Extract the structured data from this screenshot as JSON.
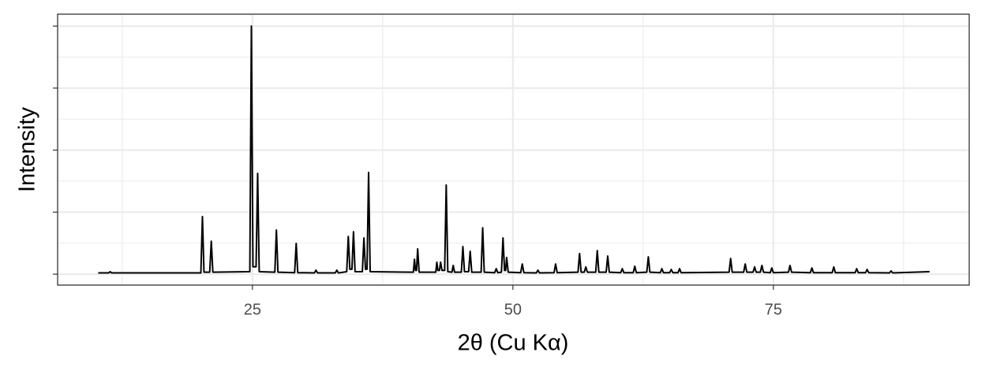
{
  "chart_data": {
    "type": "line",
    "xlabel": "2θ (Cu Kα)",
    "ylabel": "Intensity",
    "color": "#000000",
    "xlim": [
      6.3,
      93.8
    ],
    "xticks": [
      25,
      50,
      75
    ],
    "ylim": [
      -4.4,
      104.8
    ],
    "yticks": [
      0,
      25,
      50,
      75,
      100
    ],
    "y_tick_labels": false,
    "grid": true,
    "x": [
      10.2,
      11.2,
      11.34,
      11.5,
      20.05,
      20.2,
      20.35,
      20.9,
      21.05,
      21.2,
      24.75,
      24.9,
      25.05,
      25.35,
      25.5,
      25.65,
      27.15,
      27.3,
      27.45,
      29.05,
      29.2,
      29.35,
      30.95,
      31.1,
      31.25,
      32.95,
      33.1,
      33.25,
      34.05,
      34.2,
      34.35,
      34.55,
      34.7,
      34.85,
      35.55,
      35.7,
      35.85,
      36.0,
      36.15,
      36.3,
      40.45,
      40.55,
      40.65,
      40.75,
      40.86,
      41.0,
      42.6,
      42.7,
      42.8,
      42.95,
      43.06,
      43.2,
      43.45,
      43.6,
      43.75,
      44.15,
      44.27,
      44.4,
      45.05,
      45.2,
      45.35,
      45.75,
      45.9,
      46.05,
      46.95,
      47.1,
      47.25,
      48.25,
      48.4,
      48.55,
      48.9,
      49.05,
      49.2,
      49.3,
      49.4,
      49.55,
      50.75,
      50.9,
      51.05,
      52.25,
      52.4,
      52.55,
      53.95,
      54.1,
      54.25,
      56.25,
      56.4,
      56.55,
      56.85,
      57.0,
      57.15,
      57.95,
      58.1,
      58.25,
      58.95,
      59.1,
      59.25,
      60.35,
      60.5,
      60.65,
      61.55,
      61.7,
      61.85,
      62.85,
      63.0,
      63.15,
      64.15,
      64.3,
      64.45,
      65.05,
      65.2,
      65.35,
      65.85,
      66.0,
      66.15,
      70.75,
      70.9,
      71.05,
      72.15,
      72.3,
      72.45,
      73.05,
      73.2,
      73.35,
      73.75,
      73.9,
      74.05,
      74.7,
      74.85,
      75.0,
      76.45,
      76.6,
      76.75,
      78.55,
      78.7,
      78.85,
      80.65,
      80.8,
      80.95,
      82.85,
      83.0,
      83.15,
      83.85,
      84.0,
      84.15,
      86.15,
      86.3,
      86.45,
      90.0
    ],
    "values": [
      0.5,
      0.5,
      1.0,
      0.5,
      0.5,
      23.2,
      0.8,
      0.8,
      13.3,
      0.8,
      1,
      100,
      3,
      3,
      40.6,
      1,
      0.8,
      17.8,
      0.8,
      0.6,
      12.4,
      0.6,
      0.5,
      1.6,
      0.5,
      0.5,
      1.6,
      0.5,
      1,
      15.2,
      2,
      2,
      17.1,
      1,
      1,
      14.6,
      2,
      2,
      41,
      1,
      0.8,
      6,
      1.5,
      1.5,
      10.2,
      0.8,
      0.8,
      4.8,
      1.5,
      1.5,
      4.8,
      1.5,
      1.5,
      35.9,
      1,
      0.8,
      3.5,
      0.8,
      0.8,
      11.1,
      1,
      1,
      9.2,
      0.8,
      0.8,
      18.7,
      0.8,
      0.6,
      2.2,
      0.6,
      0.8,
      14.6,
      1.5,
      1.5,
      6.7,
      0.8,
      0.6,
      4.1,
      0.6,
      0.5,
      1.6,
      0.5,
      0.6,
      4.1,
      0.6,
      0.8,
      8.3,
      0.8,
      0.8,
      2.9,
      0.8,
      0.8,
      9.5,
      0.8,
      0.8,
      7.3,
      0.8,
      0.6,
      2.2,
      0.6,
      0.6,
      3.2,
      0.6,
      0.8,
      7.0,
      0.8,
      0.6,
      2.2,
      0.6,
      0.6,
      1.9,
      0.6,
      0.6,
      2.2,
      0.6,
      0.8,
      6.3,
      0.8,
      0.8,
      4.1,
      0.8,
      0.8,
      2.9,
      0.8,
      0.8,
      3.5,
      0.8,
      0.6,
      2.5,
      0.6,
      0.8,
      3.5,
      0.8,
      0.6,
      2.5,
      0.6,
      0.6,
      2.9,
      0.6,
      0.6,
      2.2,
      0.6,
      0.6,
      1.9,
      0.6,
      0.5,
      1.3,
      0.5,
      1.0
    ]
  }
}
